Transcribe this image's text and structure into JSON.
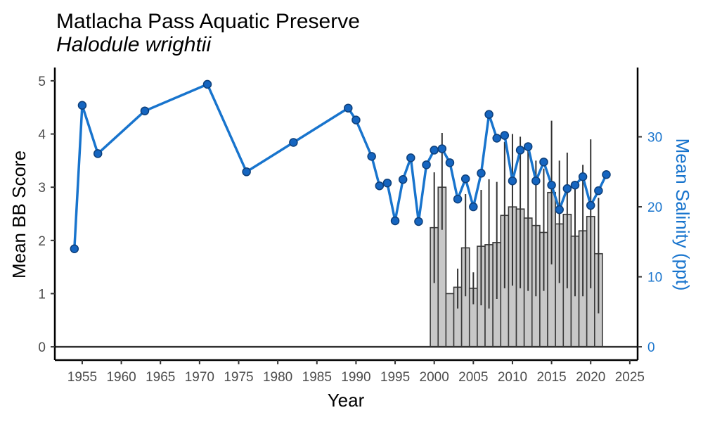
{
  "chart_data": {
    "type": "bar",
    "title": "Matlacha Pass Aquatic Preserve",
    "subtitle": "Halodule wrightii",
    "xlabel": "Year",
    "ylabel": "Mean BB Score",
    "y2label": "Mean Salinity (ppt)",
    "xlim": [
      1951.5,
      2026
    ],
    "ylim": [
      -0.25,
      5.25
    ],
    "y2lim": [
      -1.9,
      39.9
    ],
    "x_ticks": [
      "1955",
      "1960",
      "1965",
      "1970",
      "1975",
      "1980",
      "1985",
      "1990",
      "1995",
      "2000",
      "2005",
      "2010",
      "2015",
      "2020",
      "2025"
    ],
    "y_ticks": [
      "0",
      "1",
      "2",
      "3",
      "4",
      "5"
    ],
    "y2_ticks": [
      "0",
      "10",
      "20",
      "30"
    ],
    "grid": false,
    "colors": {
      "bars": "#c8c8c8",
      "bar_outline": "#3a3a3a",
      "salinity": "#1874cd",
      "points": "#1565c0",
      "point_outline": "#0d3f7a"
    },
    "series": [
      {
        "name": "Mean BB Score",
        "type": "bar",
        "axis": "left",
        "x": [
          2000,
          2001,
          2002,
          2003,
          2004,
          2005,
          2006,
          2007,
          2008,
          2009,
          2010,
          2011,
          2012,
          2013,
          2014,
          2015,
          2016,
          2017,
          2018,
          2019,
          2020,
          2021
        ],
        "values": [
          2.24,
          3.0,
          1.0,
          1.12,
          1.86,
          1.1,
          1.89,
          1.92,
          1.96,
          2.47,
          2.63,
          2.59,
          2.42,
          2.28,
          2.15,
          2.9,
          2.31,
          2.49,
          2.08,
          2.18,
          2.45,
          1.75
        ],
        "err_low": [
          1.2,
          2.2,
          1.0,
          0.72,
          0.95,
          0.8,
          0.78,
          0.72,
          0.9,
          1.1,
          1.15,
          1.1,
          1.05,
          0.95,
          1.05,
          1.55,
          1.2,
          1.1,
          0.95,
          0.95,
          1.1,
          0.63
        ],
        "err_high": [
          3.28,
          4.02,
          1.0,
          1.47,
          2.87,
          1.4,
          2.95,
          3.15,
          3.1,
          3.85,
          4.0,
          3.95,
          3.8,
          3.5,
          3.35,
          4.25,
          3.5,
          3.65,
          3.05,
          3.42,
          3.9,
          2.8
        ]
      },
      {
        "name": "Mean Salinity (ppt)",
        "type": "line",
        "axis": "right",
        "x": [
          1954,
          1955,
          1957,
          1963,
          1971,
          1976,
          1982,
          1989,
          1990,
          1992,
          1993,
          1994,
          1995,
          1996,
          1997,
          1998,
          1999,
          2000,
          2001,
          2002,
          2003,
          2004,
          2005,
          2006,
          2007,
          2008,
          2009,
          2010,
          2011,
          2012,
          2013,
          2014,
          2015,
          2016,
          2017,
          2018,
          2019,
          2020,
          2021,
          2022
        ],
        "values": [
          14.0,
          34.5,
          27.6,
          33.7,
          37.5,
          25.0,
          29.2,
          34.1,
          32.4,
          27.2,
          23.0,
          23.4,
          18.0,
          23.9,
          27.0,
          17.9,
          26.0,
          28.1,
          28.3,
          26.3,
          21.1,
          24.0,
          20.0,
          24.8,
          33.2,
          29.8,
          30.2,
          23.7,
          28.1,
          28.6,
          23.7,
          26.4,
          23.1,
          19.6,
          22.6,
          23.1,
          24.3,
          20.2,
          22.3,
          24.6
        ]
      }
    ]
  }
}
